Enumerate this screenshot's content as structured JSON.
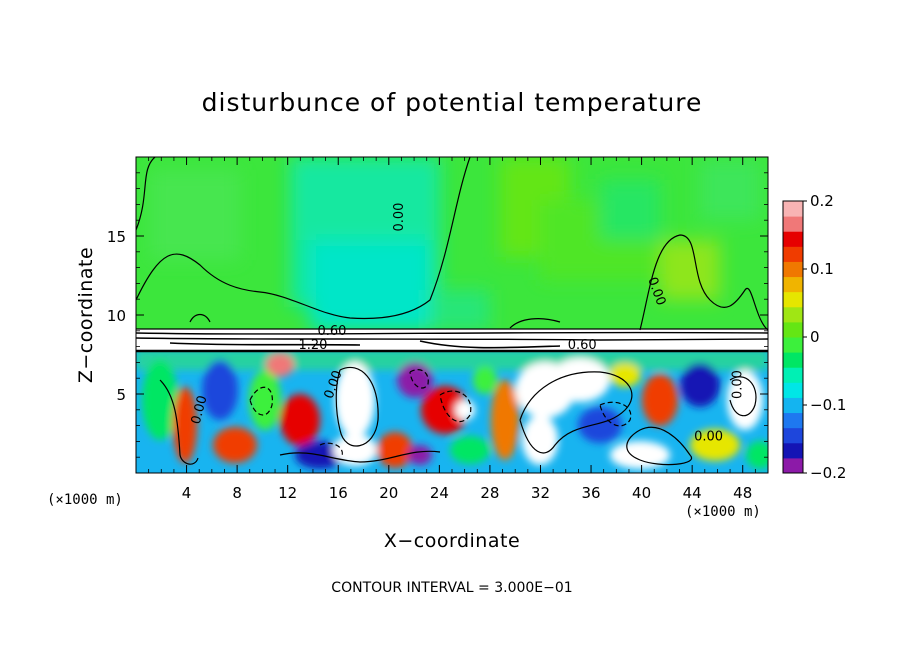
{
  "chart_data": {
    "type": "heatmap",
    "title": "disturbunce of potential temperature",
    "xlabel": "X−coordinate",
    "ylabel": "Z−coordinate",
    "x_unit_label": "(×1000 m)",
    "z_unit_label": "(×1000 m)",
    "x_ticks": [
      4,
      8,
      12,
      16,
      20,
      24,
      28,
      32,
      36,
      40,
      44,
      48
    ],
    "x_tick_labels": [
      "4",
      "8",
      "12",
      "16",
      "20",
      "24",
      "28",
      "32",
      "36",
      "40",
      "44",
      "48"
    ],
    "z_ticks": [
      5,
      10,
      15
    ],
    "z_tick_labels": [
      "5",
      "10",
      "15"
    ],
    "xlim": [
      0,
      50
    ],
    "zlim": [
      0,
      20
    ],
    "colorbar": {
      "range": [
        -0.2,
        0.2
      ],
      "tick_values": [
        0.2,
        0.1,
        0,
        -0.1,
        -0.2
      ],
      "tick_labels": [
        "0.2",
        "0.1",
        "0",
        "−0.1",
        "−0.2"
      ],
      "colors": [
        "#8c1aa8",
        "#1414b4",
        "#1e46dc",
        "#1e78f0",
        "#14b4f0",
        "#00e6e6",
        "#00f0b4",
        "#00e664",
        "#3cf03c",
        "#64e614",
        "#a0e614",
        "#e6e600",
        "#f0b400",
        "#f07800",
        "#f03c00",
        "#e60000",
        "#f07878",
        "#f8b4b4"
      ]
    },
    "contour_labels": [
      {
        "text": "0.00",
        "x": 20.8,
        "z": 16.2,
        "angle": -90
      },
      {
        "text": "0.00",
        "x": 41.2,
        "z": 11.5,
        "angle": 70
      },
      {
        "text": "0.60",
        "x": 15.5,
        "z": 9.0,
        "angle": 0
      },
      {
        "text": "1.20",
        "x": 14.0,
        "z": 8.1,
        "angle": 0
      },
      {
        "text": "0.60",
        "x": 35.3,
        "z": 8.1,
        "angle": 0
      },
      {
        "text": "0.00",
        "x": 15.6,
        "z": 5.6,
        "angle": -70
      },
      {
        "text": "0.00",
        "x": 5.0,
        "z": 4.0,
        "angle": -75
      },
      {
        "text": "0.00",
        "x": 45.3,
        "z": 2.3,
        "angle": 0
      },
      {
        "text": "0.00",
        "x": 47.6,
        "z": 5.6,
        "angle": -90
      }
    ],
    "contour_interval_text": "CONTOUR INTERVAL = 3.000E−01"
  }
}
